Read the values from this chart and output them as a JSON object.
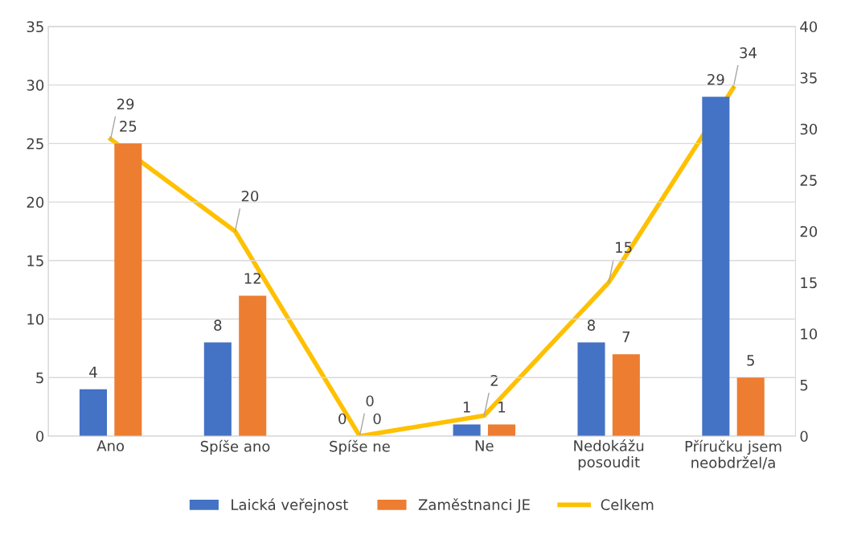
{
  "chart_data": {
    "type": "bar",
    "categories": [
      "Ano",
      "Spíše ano",
      "Spíše ne",
      "Ne",
      "Nedokážu\nposoudit",
      "Příručku jsem\nneobdržel/a"
    ],
    "series": [
      {
        "name": "Laická veřejnost",
        "color": "#4472c4",
        "values": [
          4,
          8,
          0,
          1,
          8,
          29
        ]
      },
      {
        "name": "Zaměstnanci JE",
        "color": "#ed7d31",
        "values": [
          25,
          12,
          0,
          1,
          7,
          5
        ]
      },
      {
        "name": "Celkem",
        "type": "line",
        "axis": "y2",
        "color": "#ffc000",
        "values": [
          29,
          20,
          0,
          2,
          15,
          34
        ],
        "marker": "none"
      }
    ],
    "ylim": [
      0,
      35
    ],
    "yticks": [
      0,
      5,
      10,
      15,
      20,
      25,
      30,
      35
    ],
    "y2lim": [
      0,
      40
    ],
    "y2ticks": [
      0,
      5,
      10,
      15,
      20,
      25,
      30,
      35,
      40
    ],
    "grid": "y",
    "legend": "bottom",
    "data_labels": true
  }
}
